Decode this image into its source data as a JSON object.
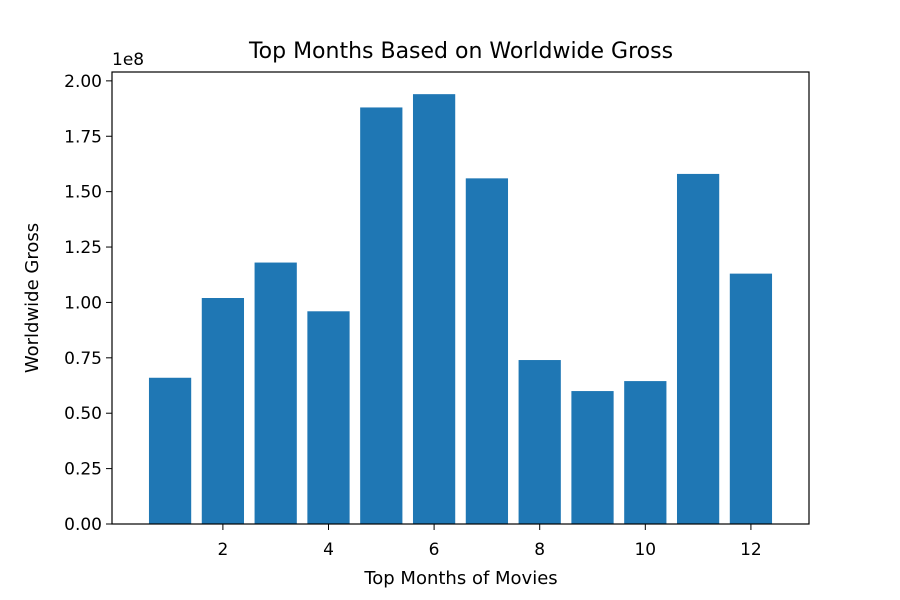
{
  "chart_data": {
    "type": "bar",
    "title": "Top Months Based on Worldwide Gross",
    "xlabel": "Top Months of Movies",
    "ylabel": "Worldwide Gross",
    "y_offset_label": "1e8",
    "x": [
      1,
      2,
      3,
      4,
      5,
      6,
      7,
      8,
      9,
      10,
      11,
      12
    ],
    "values": [
      66000000,
      102000000,
      118000000,
      96000000,
      188000000,
      194000000,
      156000000,
      74000000,
      60000000,
      64500000,
      158000000,
      113000000
    ],
    "xlim": [
      -0.1,
      13.1
    ],
    "ylim": [
      0,
      204000000
    ],
    "x_ticks": [
      2,
      4,
      6,
      8,
      10,
      12
    ],
    "x_tick_labels": [
      "2",
      "4",
      "6",
      "8",
      "10",
      "12"
    ],
    "y_ticks": [
      0,
      25000000,
      50000000,
      75000000,
      100000000,
      125000000,
      150000000,
      175000000,
      200000000
    ],
    "y_tick_labels": [
      "0.00",
      "0.25",
      "0.50",
      "0.75",
      "1.00",
      "1.25",
      "1.50",
      "1.75",
      "2.00"
    ],
    "bar_color": "#1f77b4",
    "grid": false,
    "legend": "none"
  }
}
